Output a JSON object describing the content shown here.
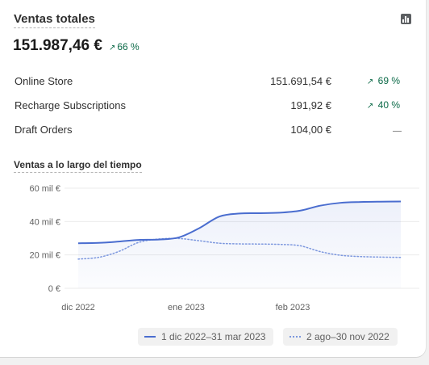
{
  "card": {
    "title": "Ventas totales",
    "icon": "bar-chart-icon",
    "total": "151.987,46 €",
    "total_delta": "66 %",
    "delta_color": "#0c6a48"
  },
  "rows": [
    {
      "name": "Online Store",
      "value": "151.691,54 €",
      "pct": "69 %",
      "trend": "up"
    },
    {
      "name": "Recharge Subscriptions",
      "value": "191,92 €",
      "pct": "40 %",
      "trend": "up"
    },
    {
      "name": "Draft Orders",
      "value": "104,00 €",
      "pct": "",
      "trend": "none"
    }
  ],
  "chart": {
    "subtitle": "Ventas a lo largo del tiempo"
  },
  "chart_data": {
    "type": "line",
    "y_ticks": [
      "60 mil €",
      "40 mil €",
      "20 mil €",
      "0 €"
    ],
    "y_tick_values": [
      60000,
      40000,
      20000,
      0
    ],
    "ylim": [
      0,
      60000
    ],
    "x_ticks": [
      "dic 2022",
      "ene 2023",
      "feb 2023"
    ],
    "grid": true,
    "legend_position": "bottom",
    "series": [
      {
        "name": "1 dic 2022–31 mar 2023",
        "style": "solid",
        "color": "#4a6dcf",
        "x": [
          0,
          1,
          2,
          3,
          4,
          5,
          6,
          7,
          8,
          9,
          10,
          11,
          12,
          13,
          14,
          15,
          16
        ],
        "values": [
          27000,
          27200,
          28000,
          29000,
          29200,
          30500,
          36000,
          43000,
          44800,
          45000,
          45300,
          46500,
          49500,
          51200,
          51700,
          51900,
          52000
        ]
      },
      {
        "name": "2 ago–30 nov 2022",
        "style": "dotted",
        "color": "#7c97de",
        "x": [
          0,
          1,
          2,
          3,
          4,
          5,
          6,
          7,
          8,
          9,
          10,
          11,
          12,
          13,
          14,
          15,
          16
        ],
        "values": [
          17500,
          18500,
          22000,
          27500,
          29500,
          29800,
          28500,
          27000,
          26600,
          26500,
          26300,
          25500,
          22000,
          19800,
          19000,
          18700,
          18500
        ]
      }
    ]
  }
}
